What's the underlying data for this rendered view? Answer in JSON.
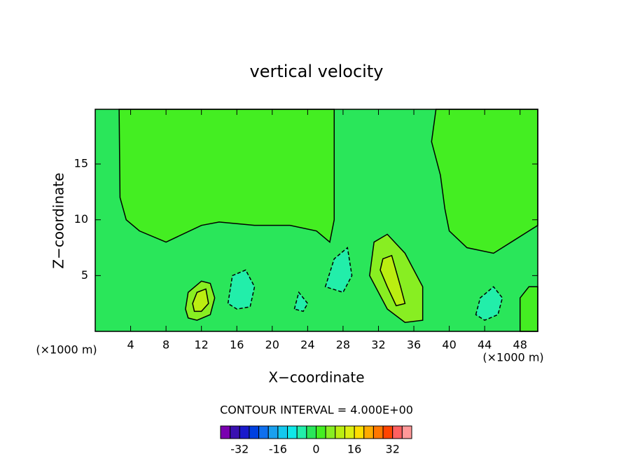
{
  "chart_data": {
    "type": "contour",
    "title": "vertical velocity",
    "xlabel": "X−coordinate",
    "ylabel": "Z−coordinate",
    "x_unit": "(×1000 m)",
    "y_unit": "(×1000 m)",
    "xlim": [
      0,
      50
    ],
    "ylim": [
      0,
      19.9
    ],
    "xticks": [
      4,
      8,
      12,
      16,
      20,
      24,
      28,
      32,
      36,
      40,
      44,
      48
    ],
    "yticks": [
      5,
      10,
      15
    ],
    "base_level": -4,
    "regions": [
      {
        "level": 0,
        "points": [
          [
            2.7,
            19.9
          ],
          [
            2.8,
            12
          ],
          [
            3.5,
            10
          ],
          [
            5,
            9
          ],
          [
            8,
            8
          ],
          [
            12,
            9.5
          ],
          [
            14,
            9.8
          ],
          [
            18,
            9.5
          ],
          [
            22,
            9.5
          ],
          [
            25,
            9
          ],
          [
            26.5,
            8
          ],
          [
            27,
            10
          ],
          [
            27,
            19.9
          ]
        ]
      },
      {
        "level": 0,
        "points": [
          [
            38.5,
            19.9
          ],
          [
            38,
            17
          ],
          [
            39,
            14
          ],
          [
            39.5,
            11
          ],
          [
            40,
            9
          ],
          [
            42,
            7.5
          ],
          [
            45,
            7
          ],
          [
            47,
            8
          ],
          [
            49,
            9
          ],
          [
            50,
            9.5
          ],
          [
            50,
            19.9
          ]
        ]
      },
      {
        "level": 0,
        "points": [
          [
            48,
            0
          ],
          [
            48,
            3
          ],
          [
            49,
            4
          ],
          [
            50,
            4
          ],
          [
            50,
            0
          ]
        ]
      },
      {
        "level": 4,
        "points": [
          [
            31.5,
            8
          ],
          [
            33,
            8.7
          ],
          [
            35,
            7
          ],
          [
            37,
            4
          ],
          [
            37,
            1
          ],
          [
            35,
            0.8
          ],
          [
            33,
            2
          ],
          [
            31,
            5
          ]
        ]
      },
      {
        "level": 8,
        "points": [
          [
            32.5,
            6.5
          ],
          [
            33.5,
            6.8
          ],
          [
            34.5,
            4
          ],
          [
            35,
            2.5
          ],
          [
            34,
            2.3
          ],
          [
            33,
            4
          ],
          [
            32.2,
            5.5
          ]
        ]
      },
      {
        "level": 4,
        "points": [
          [
            10.2,
            2
          ],
          [
            10.5,
            3.5
          ],
          [
            12,
            4.5
          ],
          [
            13,
            4.3
          ],
          [
            13.5,
            3
          ],
          [
            13,
            1.5
          ],
          [
            11.5,
            1
          ],
          [
            10.5,
            1.2
          ]
        ]
      },
      {
        "level": 8,
        "points": [
          [
            11,
            2.5
          ],
          [
            11.5,
            3.5
          ],
          [
            12.5,
            3.8
          ],
          [
            12.8,
            2.5
          ],
          [
            12,
            1.8
          ],
          [
            11.2,
            1.8
          ]
        ]
      },
      {
        "level": -8,
        "points": [
          [
            15,
            2.5
          ],
          [
            15.5,
            5
          ],
          [
            17,
            5.5
          ],
          [
            18,
            4
          ],
          [
            17.5,
            2.2
          ],
          [
            16,
            2
          ]
        ]
      },
      {
        "level": -8,
        "points": [
          [
            26,
            4
          ],
          [
            27,
            6.5
          ],
          [
            28.5,
            7.5
          ],
          [
            29,
            5
          ],
          [
            28,
            3.5
          ]
        ]
      },
      {
        "level": -8,
        "points": [
          [
            43,
            1.5
          ],
          [
            43.5,
            3
          ],
          [
            45,
            4
          ],
          [
            46,
            3
          ],
          [
            45.5,
            1.5
          ],
          [
            44,
            1
          ]
        ]
      },
      {
        "level": -8,
        "points": [
          [
            22.5,
            2
          ],
          [
            23,
            3.5
          ],
          [
            24,
            2.5
          ],
          [
            23.5,
            1.8
          ]
        ]
      }
    ],
    "contour_interval": "CONTOUR INTERVAL = 4.000E+00",
    "colorbar": {
      "levels": [
        -40,
        -36,
        -32,
        -28,
        -24,
        -20,
        -16,
        -12,
        -8,
        -4,
        0,
        4,
        8,
        12,
        16,
        20,
        24,
        28,
        32,
        36,
        40
      ],
      "colors": [
        "#7a00b0",
        "#3a10b0",
        "#1a1acc",
        "#0040e0",
        "#1070ee",
        "#1aa0ee",
        "#14c8ee",
        "#10e8e8",
        "#22eeaa",
        "#2ae65a",
        "#44ee22",
        "#88ee22",
        "#bbee11",
        "#ddee11",
        "#ffdd00",
        "#ffaa00",
        "#ff7700",
        "#ff4400",
        "#ff6060",
        "#ff9999"
      ],
      "ticks": [
        -32,
        -16,
        0,
        16,
        32
      ]
    }
  }
}
